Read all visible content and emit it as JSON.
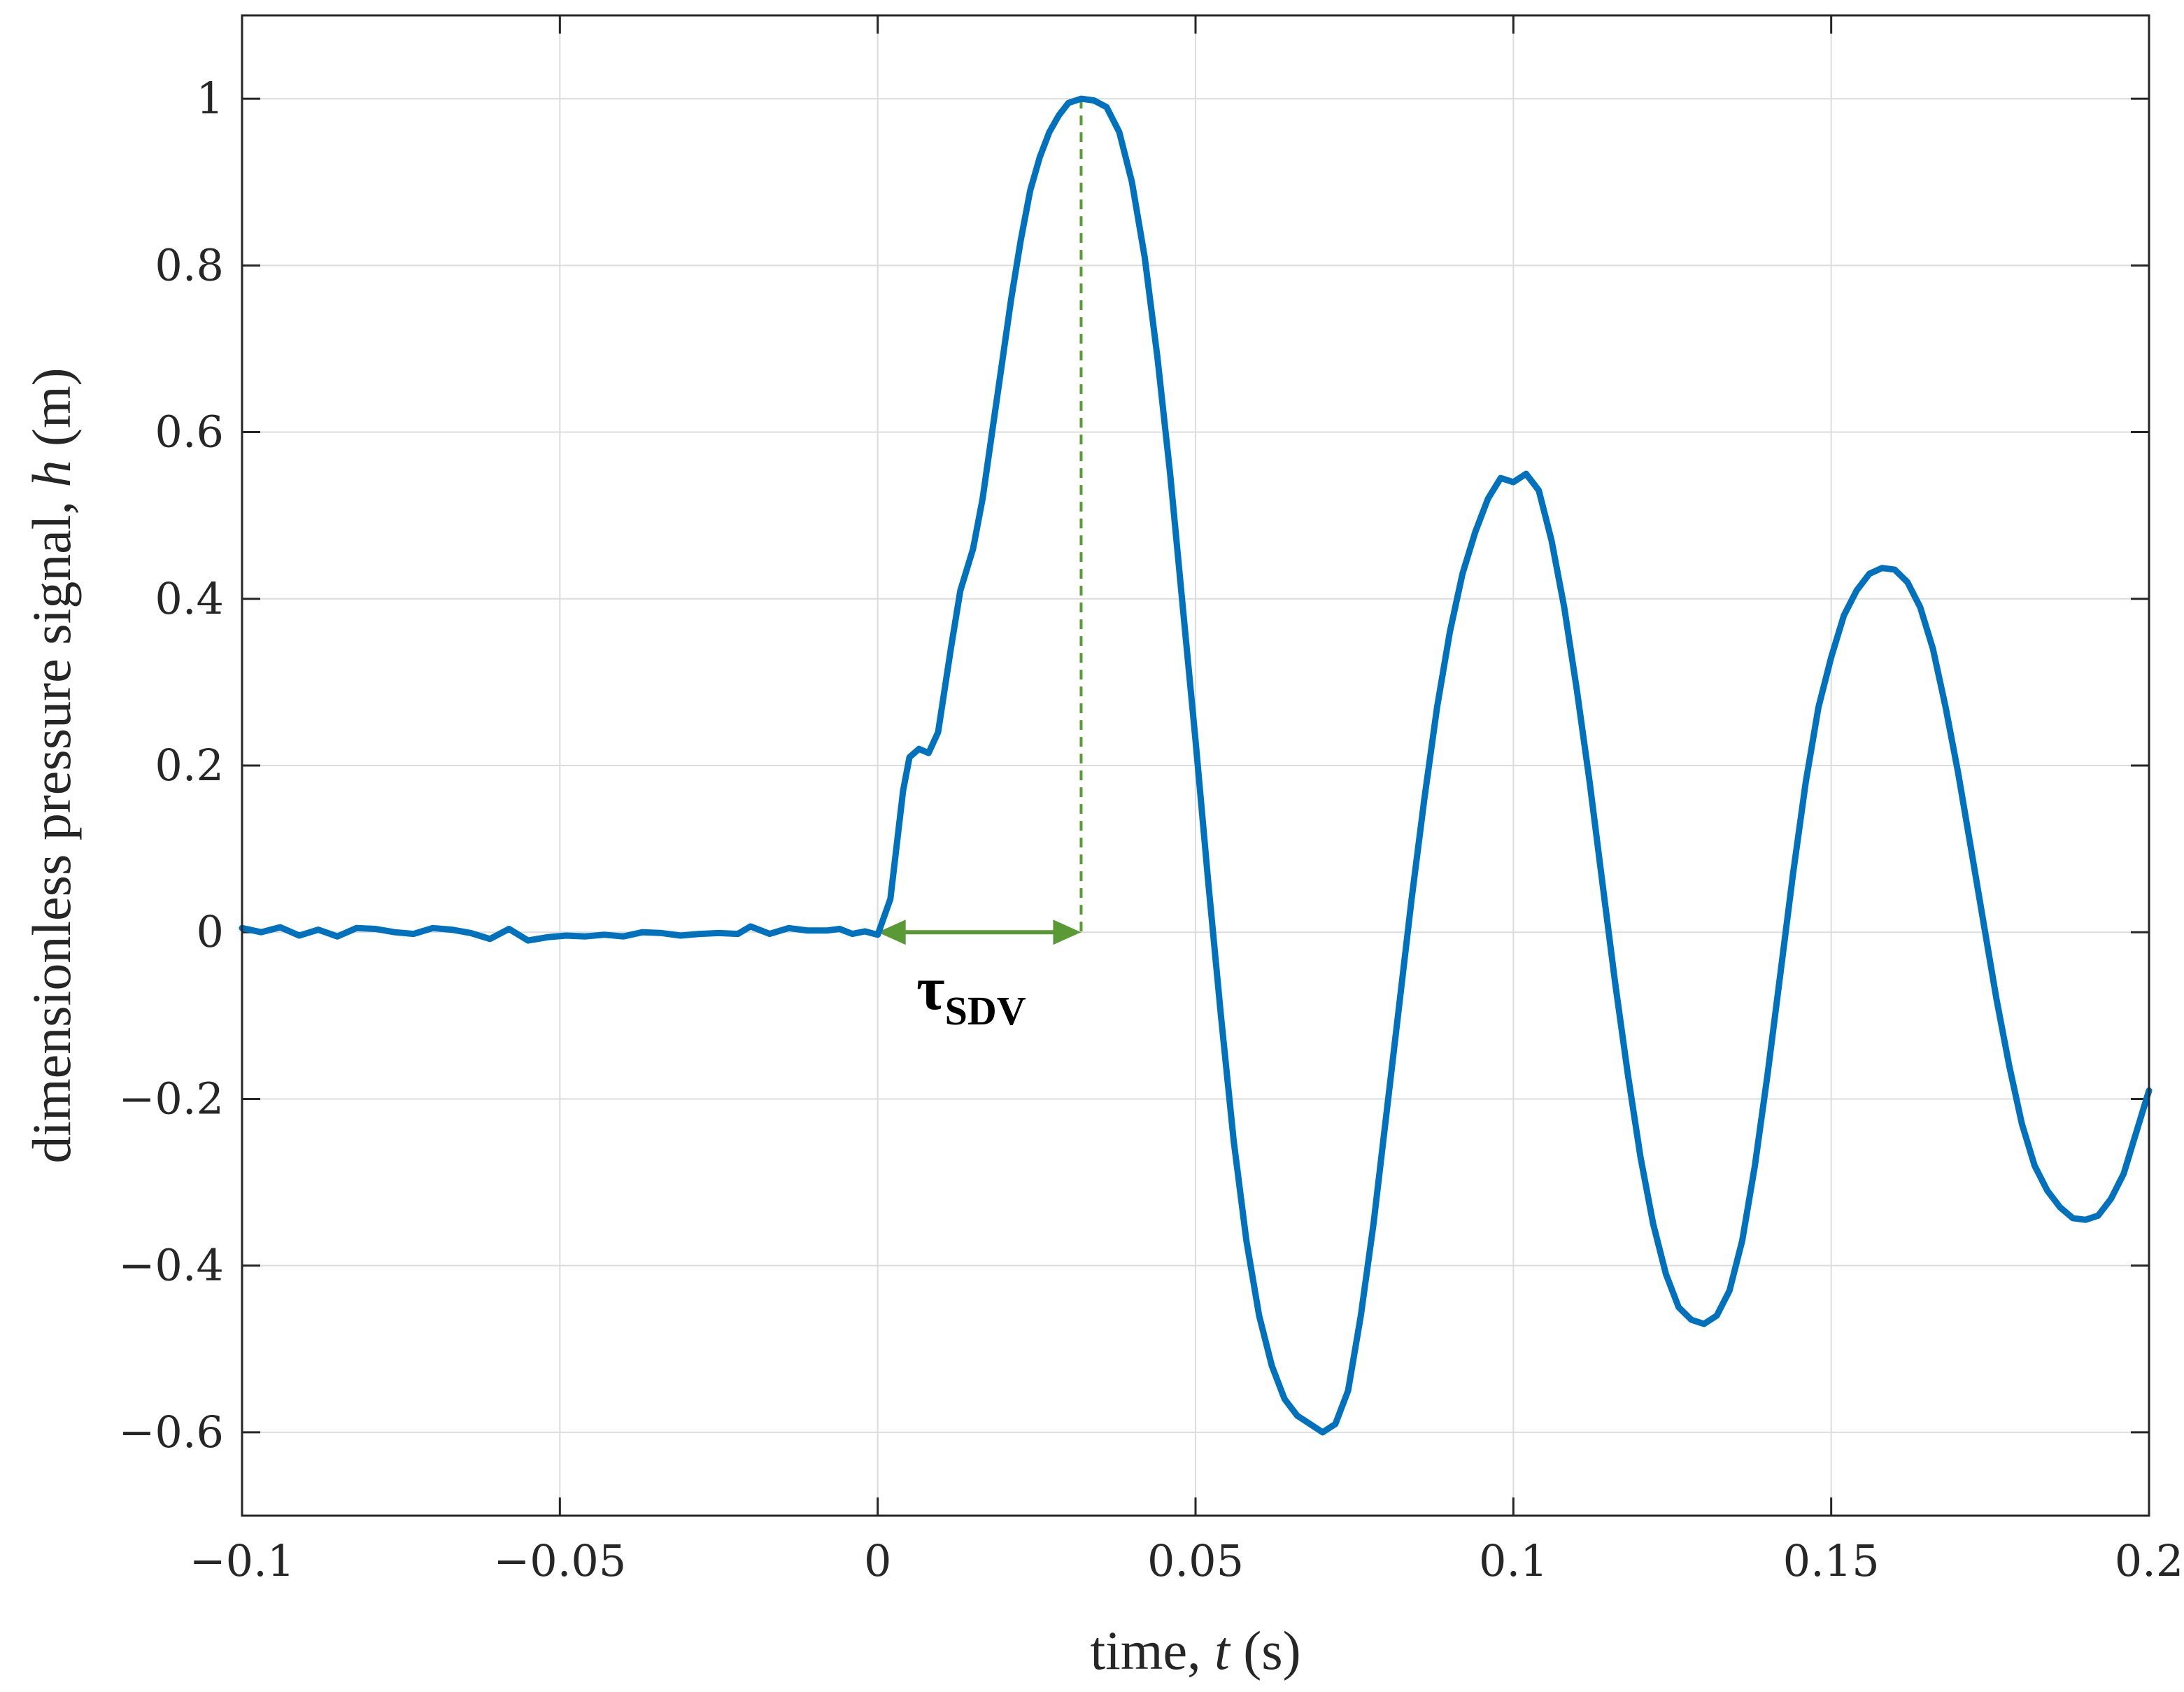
{
  "chart_data": {
    "type": "line",
    "xlabel": {
      "pre": "time, ",
      "var": "t",
      "post": " (s)"
    },
    "ylabel": {
      "pre": "dimensionless pressure signal, ",
      "var": "h",
      "post": " (m)"
    },
    "xlim": [
      -0.1,
      0.2
    ],
    "ylim": [
      -0.7,
      1.1
    ],
    "x_ticks": [
      -0.1,
      -0.05,
      0,
      0.05,
      0.1,
      0.15,
      0.2
    ],
    "x_tick_labels": [
      "−0.1",
      "−0.05",
      "0",
      "0.05",
      "0.1",
      "0.15",
      "0.2"
    ],
    "y_ticks": [
      -0.6,
      -0.4,
      -0.2,
      0,
      0.2,
      0.4,
      0.6,
      0.8,
      1
    ],
    "y_tick_labels": [
      "−0.6",
      "−0.4",
      "−0.2",
      "0",
      "0.2",
      "0.4",
      "0.6",
      "0.8",
      "1"
    ],
    "grid": true,
    "series": [
      {
        "color": "#0072BD",
        "points": [
          [
            -0.1,
            0.005
          ],
          [
            -0.097,
            0.0
          ],
          [
            -0.094,
            0.006
          ],
          [
            -0.091,
            -0.004
          ],
          [
            -0.088,
            0.003
          ],
          [
            -0.085,
            -0.005
          ],
          [
            -0.082,
            0.005
          ],
          [
            -0.079,
            0.004
          ],
          [
            -0.076,
            0.0
          ],
          [
            -0.073,
            -0.002
          ],
          [
            -0.07,
            0.005
          ],
          [
            -0.067,
            0.003
          ],
          [
            -0.064,
            -0.001
          ],
          [
            -0.061,
            -0.008
          ],
          [
            -0.058,
            0.004
          ],
          [
            -0.055,
            -0.01
          ],
          [
            -0.052,
            -0.006
          ],
          [
            -0.049,
            -0.004
          ],
          [
            -0.046,
            -0.005
          ],
          [
            -0.043,
            -0.003
          ],
          [
            -0.04,
            -0.005
          ],
          [
            -0.037,
            0.0
          ],
          [
            -0.034,
            -0.001
          ],
          [
            -0.031,
            -0.004
          ],
          [
            -0.028,
            -0.002
          ],
          [
            -0.025,
            -0.001
          ],
          [
            -0.022,
            -0.002
          ],
          [
            -0.02,
            0.007
          ],
          [
            -0.017,
            -0.002
          ],
          [
            -0.014,
            0.005
          ],
          [
            -0.011,
            0.002
          ],
          [
            -0.008,
            0.002
          ],
          [
            -0.006,
            0.004
          ],
          [
            -0.004,
            -0.002
          ],
          [
            -0.002,
            0.001
          ],
          [
            0.0,
            -0.003
          ],
          [
            0.002,
            0.04
          ],
          [
            0.004,
            0.17
          ],
          [
            0.005,
            0.21
          ],
          [
            0.0065,
            0.22
          ],
          [
            0.008,
            0.215
          ],
          [
            0.0095,
            0.24
          ],
          [
            0.0115,
            0.34
          ],
          [
            0.013,
            0.41
          ],
          [
            0.015,
            0.46
          ],
          [
            0.0165,
            0.52
          ],
          [
            0.018,
            0.6
          ],
          [
            0.0195,
            0.68
          ],
          [
            0.021,
            0.76
          ],
          [
            0.0225,
            0.83
          ],
          [
            0.024,
            0.89
          ],
          [
            0.0255,
            0.93
          ],
          [
            0.027,
            0.96
          ],
          [
            0.0285,
            0.98
          ],
          [
            0.03,
            0.995
          ],
          [
            0.032,
            1.0
          ],
          [
            0.034,
            0.998
          ],
          [
            0.036,
            0.99
          ],
          [
            0.038,
            0.96
          ],
          [
            0.04,
            0.9
          ],
          [
            0.042,
            0.81
          ],
          [
            0.044,
            0.69
          ],
          [
            0.046,
            0.55
          ],
          [
            0.048,
            0.39
          ],
          [
            0.05,
            0.23
          ],
          [
            0.052,
            0.06
          ],
          [
            0.054,
            -0.1
          ],
          [
            0.056,
            -0.25
          ],
          [
            0.058,
            -0.37
          ],
          [
            0.06,
            -0.46
          ],
          [
            0.062,
            -0.52
          ],
          [
            0.064,
            -0.56
          ],
          [
            0.066,
            -0.58
          ],
          [
            0.068,
            -0.59
          ],
          [
            0.07,
            -0.6
          ],
          [
            0.072,
            -0.59
          ],
          [
            0.074,
            -0.55
          ],
          [
            0.076,
            -0.46
          ],
          [
            0.078,
            -0.35
          ],
          [
            0.08,
            -0.22
          ],
          [
            0.082,
            -0.09
          ],
          [
            0.084,
            0.04
          ],
          [
            0.086,
            0.16
          ],
          [
            0.088,
            0.27
          ],
          [
            0.09,
            0.36
          ],
          [
            0.092,
            0.43
          ],
          [
            0.094,
            0.48
          ],
          [
            0.096,
            0.52
          ],
          [
            0.098,
            0.545
          ],
          [
            0.1,
            0.54
          ],
          [
            0.102,
            0.55
          ],
          [
            0.104,
            0.53
          ],
          [
            0.106,
            0.47
          ],
          [
            0.108,
            0.39
          ],
          [
            0.11,
            0.29
          ],
          [
            0.112,
            0.18
          ],
          [
            0.114,
            0.06
          ],
          [
            0.116,
            -0.06
          ],
          [
            0.118,
            -0.17
          ],
          [
            0.12,
            -0.27
          ],
          [
            0.122,
            -0.35
          ],
          [
            0.124,
            -0.41
          ],
          [
            0.126,
            -0.45
          ],
          [
            0.128,
            -0.465
          ],
          [
            0.13,
            -0.47
          ],
          [
            0.132,
            -0.46
          ],
          [
            0.134,
            -0.43
          ],
          [
            0.136,
            -0.37
          ],
          [
            0.138,
            -0.28
          ],
          [
            0.14,
            -0.17
          ],
          [
            0.142,
            -0.05
          ],
          [
            0.144,
            0.07
          ],
          [
            0.146,
            0.18
          ],
          [
            0.148,
            0.27
          ],
          [
            0.15,
            0.33
          ],
          [
            0.152,
            0.38
          ],
          [
            0.154,
            0.41
          ],
          [
            0.156,
            0.43
          ],
          [
            0.158,
            0.437
          ],
          [
            0.16,
            0.435
          ],
          [
            0.162,
            0.42
          ],
          [
            0.164,
            0.39
          ],
          [
            0.166,
            0.34
          ],
          [
            0.168,
            0.27
          ],
          [
            0.17,
            0.19
          ],
          [
            0.172,
            0.1
          ],
          [
            0.174,
            0.01
          ],
          [
            0.176,
            -0.08
          ],
          [
            0.178,
            -0.16
          ],
          [
            0.18,
            -0.23
          ],
          [
            0.182,
            -0.28
          ],
          [
            0.184,
            -0.31
          ],
          [
            0.186,
            -0.33
          ],
          [
            0.188,
            -0.343
          ],
          [
            0.19,
            -0.345
          ],
          [
            0.192,
            -0.34
          ],
          [
            0.194,
            -0.32
          ],
          [
            0.196,
            -0.29
          ],
          [
            0.198,
            -0.24
          ],
          [
            0.2,
            -0.19
          ]
        ]
      }
    ],
    "annotations": {
      "peak_line": {
        "x": 0.032,
        "y_from": 0,
        "y_to": 1.0,
        "color": "#5A9A35"
      },
      "tau_arrow": {
        "x_from": 0.0,
        "x_to": 0.032,
        "y": 0,
        "color": "#5A9A35"
      },
      "tau_label": {
        "main": "τ",
        "sub": "SDV"
      }
    }
  }
}
